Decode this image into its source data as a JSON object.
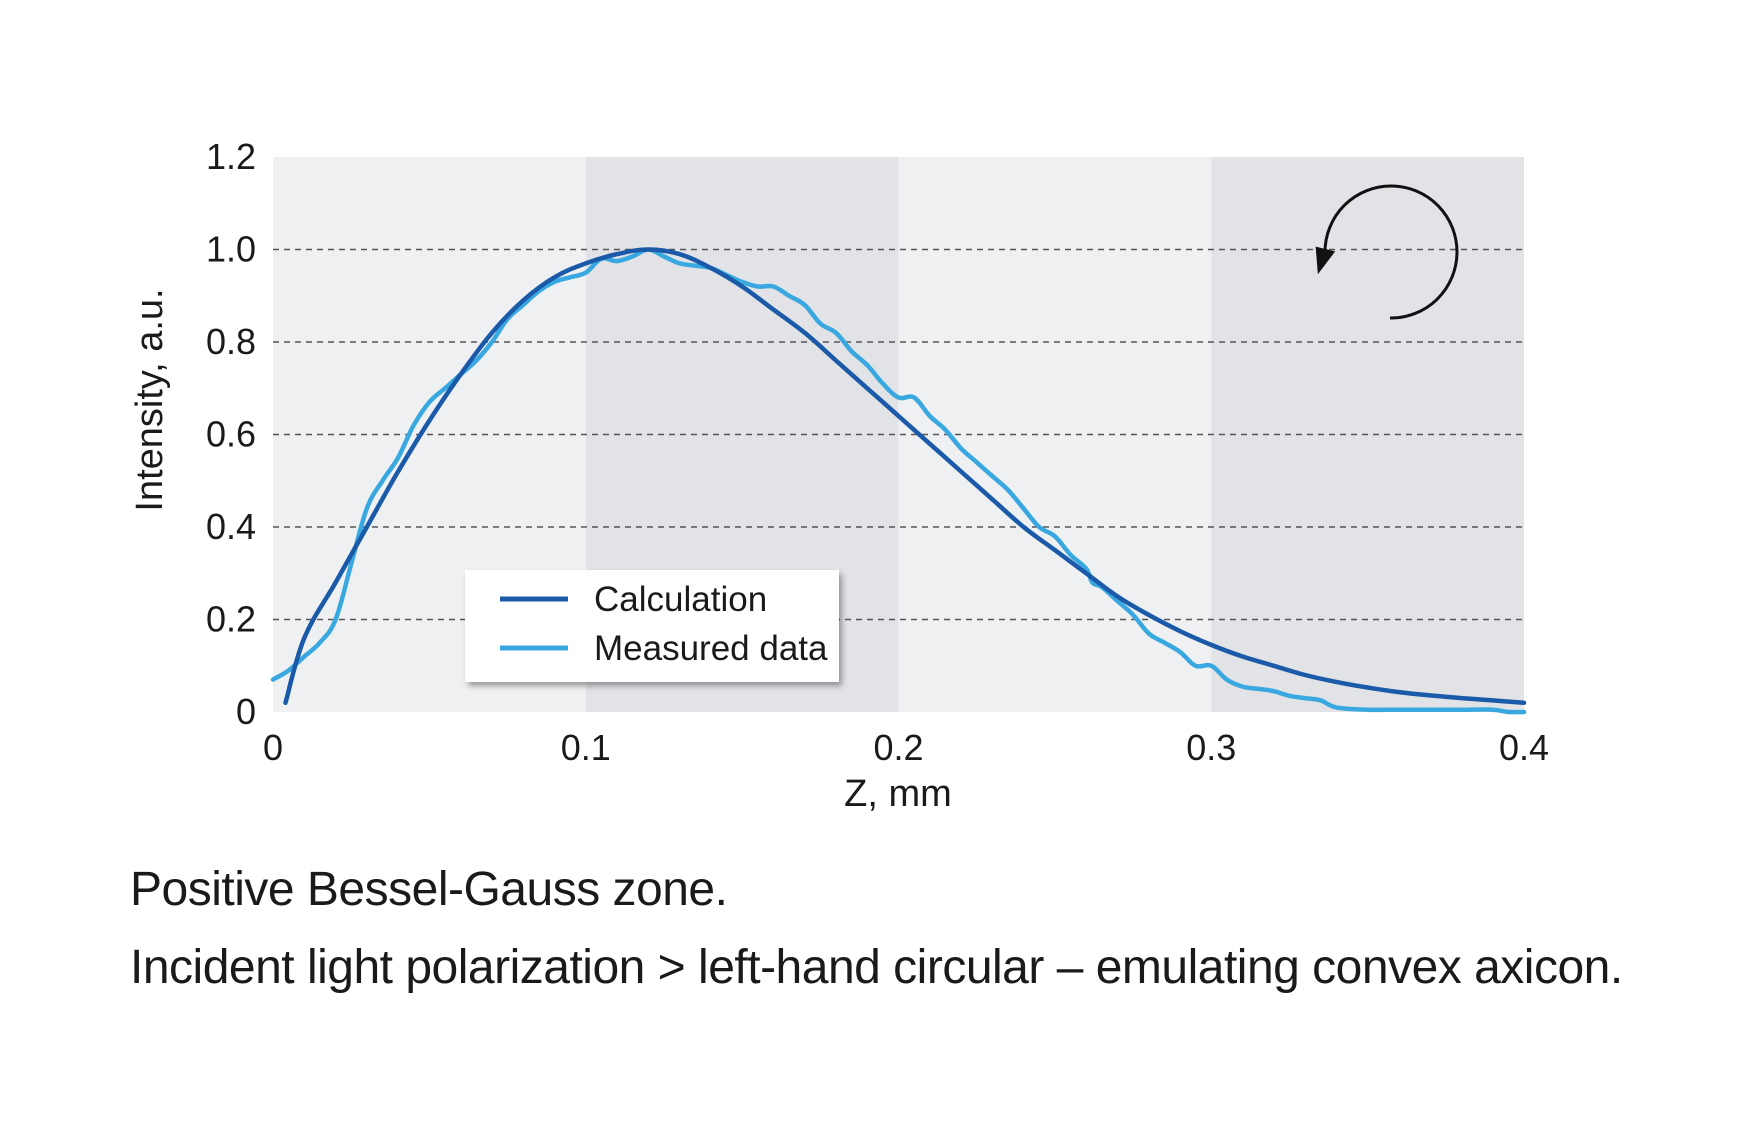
{
  "chart_data": {
    "type": "line",
    "title": "",
    "xlabel": "Z, mm",
    "ylabel": "Intensity, a.u.",
    "xlim": [
      0,
      0.4
    ],
    "ylim": [
      0,
      1.2
    ],
    "x_ticks": [
      0,
      0.1,
      0.2,
      0.3,
      0.4
    ],
    "x_tick_labels": [
      "0",
      "0.1",
      "0.2",
      "0.3",
      "0.4"
    ],
    "y_ticks": [
      0,
      0.2,
      0.4,
      0.6,
      0.8,
      1.0,
      1.2
    ],
    "y_tick_labels": [
      "0",
      "0.2",
      "0.4",
      "0.6",
      "0.8",
      "1.0",
      "1.2"
    ],
    "grid": "horizontal dashed at 0.2, 0.4, 0.6, 0.8, 1.0",
    "background_bands": [
      {
        "from": 0.0,
        "to": 0.1,
        "shade": "light"
      },
      {
        "from": 0.1,
        "to": 0.2,
        "shade": "dark"
      },
      {
        "from": 0.2,
        "to": 0.3,
        "shade": "light"
      },
      {
        "from": 0.3,
        "to": 0.4,
        "shade": "dark"
      }
    ],
    "legend_position": "bottom-center",
    "annotation": "counter-clockwise circular arrow icon (left-hand circular polarization)",
    "series": [
      {
        "name": "Calculation",
        "color": "#1a5aa8",
        "x": [
          0.004,
          0.01,
          0.02,
          0.03,
          0.04,
          0.05,
          0.06,
          0.07,
          0.08,
          0.09,
          0.1,
          0.11,
          0.12,
          0.13,
          0.14,
          0.15,
          0.16,
          0.17,
          0.18,
          0.19,
          0.2,
          0.21,
          0.22,
          0.23,
          0.24,
          0.25,
          0.26,
          0.27,
          0.28,
          0.29,
          0.3,
          0.31,
          0.32,
          0.33,
          0.34,
          0.35,
          0.36,
          0.37,
          0.38,
          0.39,
          0.4
        ],
        "y": [
          0.02,
          0.16,
          0.28,
          0.4,
          0.52,
          0.63,
          0.73,
          0.82,
          0.89,
          0.94,
          0.97,
          0.99,
          1.0,
          0.99,
          0.96,
          0.92,
          0.87,
          0.82,
          0.76,
          0.7,
          0.64,
          0.58,
          0.52,
          0.46,
          0.4,
          0.35,
          0.3,
          0.25,
          0.21,
          0.175,
          0.145,
          0.12,
          0.1,
          0.08,
          0.065,
          0.053,
          0.043,
          0.036,
          0.03,
          0.025,
          0.02
        ]
      },
      {
        "name": "Measured data",
        "color": "#3aa8e0",
        "x": [
          0.0,
          0.005,
          0.01,
          0.015,
          0.02,
          0.025,
          0.03,
          0.035,
          0.04,
          0.045,
          0.05,
          0.055,
          0.06,
          0.065,
          0.07,
          0.075,
          0.08,
          0.085,
          0.09,
          0.095,
          0.1,
          0.105,
          0.11,
          0.115,
          0.12,
          0.125,
          0.13,
          0.135,
          0.14,
          0.145,
          0.15,
          0.155,
          0.16,
          0.165,
          0.17,
          0.175,
          0.18,
          0.185,
          0.19,
          0.195,
          0.2,
          0.205,
          0.21,
          0.215,
          0.22,
          0.225,
          0.23,
          0.235,
          0.24,
          0.245,
          0.25,
          0.255,
          0.26,
          0.262,
          0.265,
          0.27,
          0.275,
          0.28,
          0.285,
          0.29,
          0.295,
          0.3,
          0.305,
          0.31,
          0.315,
          0.32,
          0.325,
          0.33,
          0.335,
          0.34,
          0.35,
          0.36,
          0.37,
          0.38,
          0.39,
          0.395,
          0.4
        ],
        "y": [
          0.07,
          0.09,
          0.12,
          0.15,
          0.2,
          0.32,
          0.44,
          0.5,
          0.55,
          0.62,
          0.67,
          0.7,
          0.73,
          0.76,
          0.8,
          0.85,
          0.88,
          0.91,
          0.93,
          0.94,
          0.95,
          0.98,
          0.975,
          0.985,
          1.0,
          0.985,
          0.97,
          0.965,
          0.96,
          0.945,
          0.93,
          0.92,
          0.92,
          0.9,
          0.88,
          0.84,
          0.82,
          0.78,
          0.75,
          0.71,
          0.68,
          0.68,
          0.64,
          0.61,
          0.57,
          0.54,
          0.51,
          0.48,
          0.44,
          0.4,
          0.38,
          0.34,
          0.31,
          0.28,
          0.27,
          0.24,
          0.21,
          0.17,
          0.15,
          0.13,
          0.1,
          0.1,
          0.07,
          0.055,
          0.05,
          0.045,
          0.035,
          0.03,
          0.025,
          0.01,
          0.005,
          0.005,
          0.005,
          0.005,
          0.005,
          0.0,
          0.0
        ]
      }
    ]
  },
  "captions": {
    "line1": "Positive Bessel-Gauss zone.",
    "line2": "Incident light polarization > left-hand circular – emulating convex axicon."
  },
  "colors": {
    "band_light": "#eef0f2",
    "band_dark": "#e1e3e6",
    "grid": "#555555",
    "calculation": "#1a5aa8",
    "measured": "#3aa8e0",
    "arrow": "#111111"
  }
}
